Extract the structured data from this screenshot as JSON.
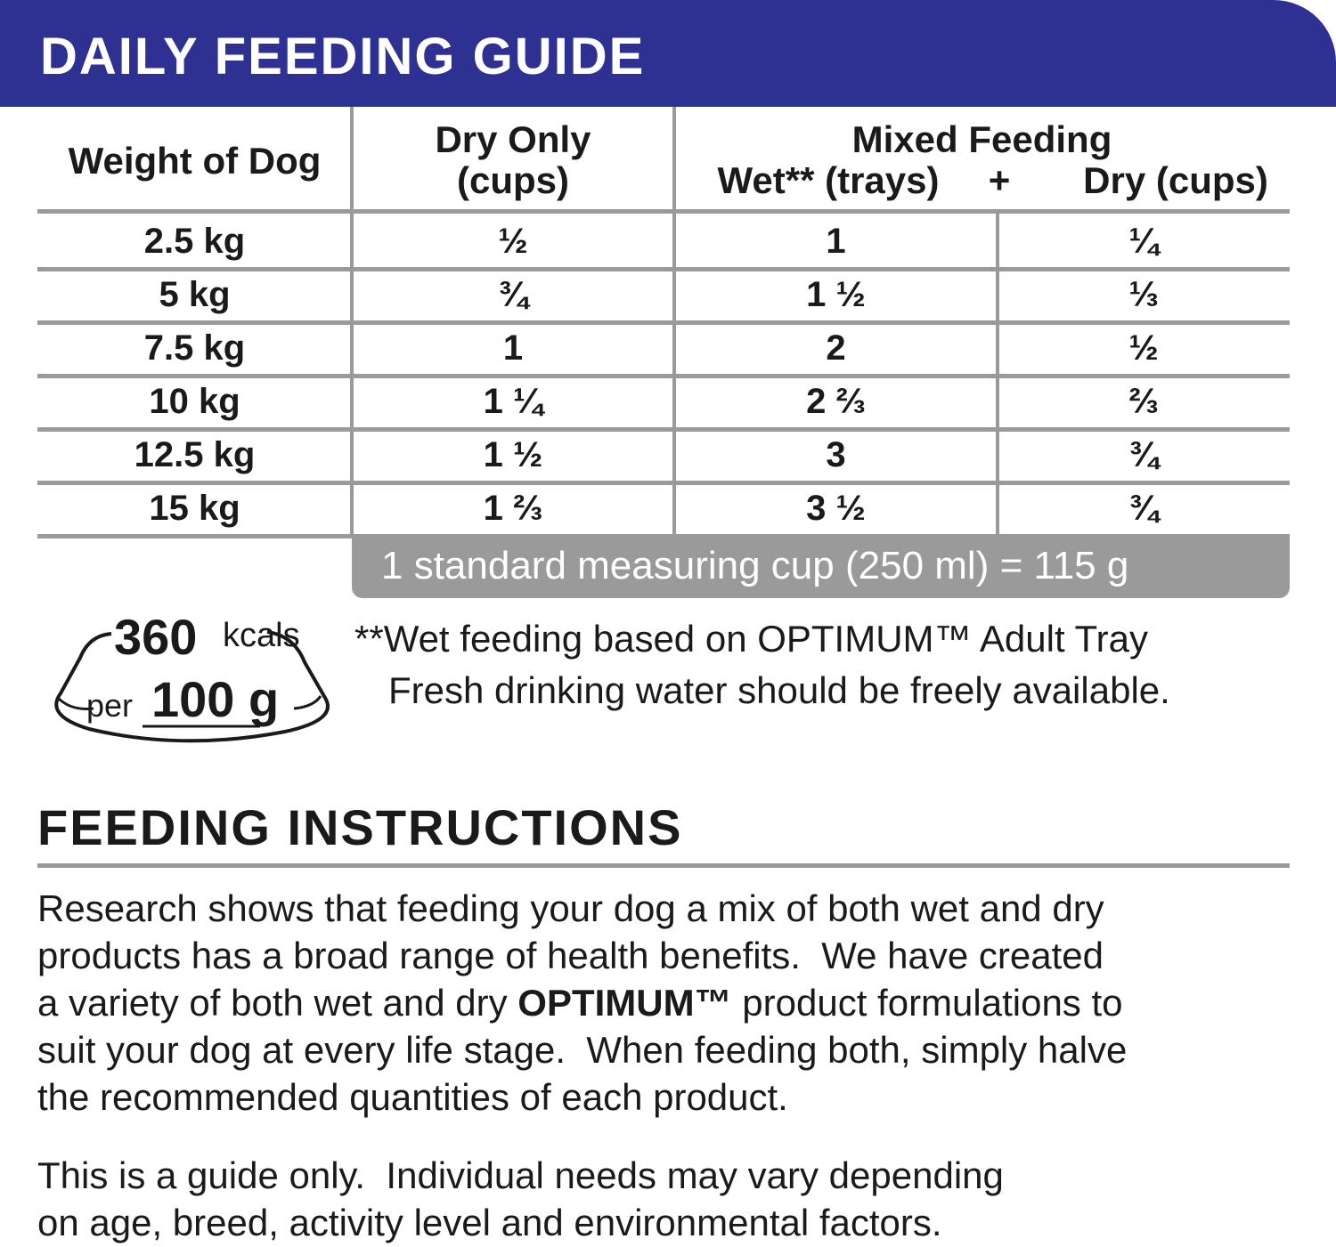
{
  "header": {
    "title": "DAILY FEEDING GUIDE"
  },
  "table": {
    "columns": {
      "weight": "Weight of Dog",
      "dry_only": [
        "Dry Only",
        "(cups)"
      ],
      "mixed": "Mixed Feeding",
      "wet": "Wet** (trays)",
      "plus": "+",
      "dry": "Dry (cups)"
    },
    "rows": [
      [
        "2.5 kg",
        "½",
        "1",
        "¼"
      ],
      [
        "5 kg",
        "¾",
        "1 ½",
        "⅓"
      ],
      [
        "7.5 kg",
        "1",
        "2",
        "½"
      ],
      [
        "10 kg",
        "1 ¼",
        "2 ⅔",
        "⅔"
      ],
      [
        "12.5 kg",
        "1 ½",
        "3",
        "¾"
      ],
      [
        "15 kg",
        "1 ⅔",
        "3 ½",
        "¾"
      ]
    ],
    "footer": "1 standard measuring cup (250 ml) = 115 g"
  },
  "energy": {
    "value": "360",
    "unit": "kcals",
    "per": "per",
    "amount": "100 g"
  },
  "notes": [
    "**Wet feeding based on OPTIMUM™ Adult Tray",
    "Fresh drinking water should be freely available."
  ],
  "instructions": {
    "title": "FEEDING INSTRUCTIONS",
    "paragraphs": [
      [
        "Research shows that feeding your dog a mix of both wet and dry",
        "products has a broad range of health benefits.  We have created",
        [
          "a variety of both wet and dry ",
          "OPTIMUM™",
          " product formulations to"
        ],
        "suit your dog at every life stage.  When feeding both, simply halve",
        "the recommended quantities of each product."
      ],
      [
        "This is a guide only.  Individual needs may vary depending",
        "on age, breed, activity level and environmental factors."
      ]
    ]
  }
}
